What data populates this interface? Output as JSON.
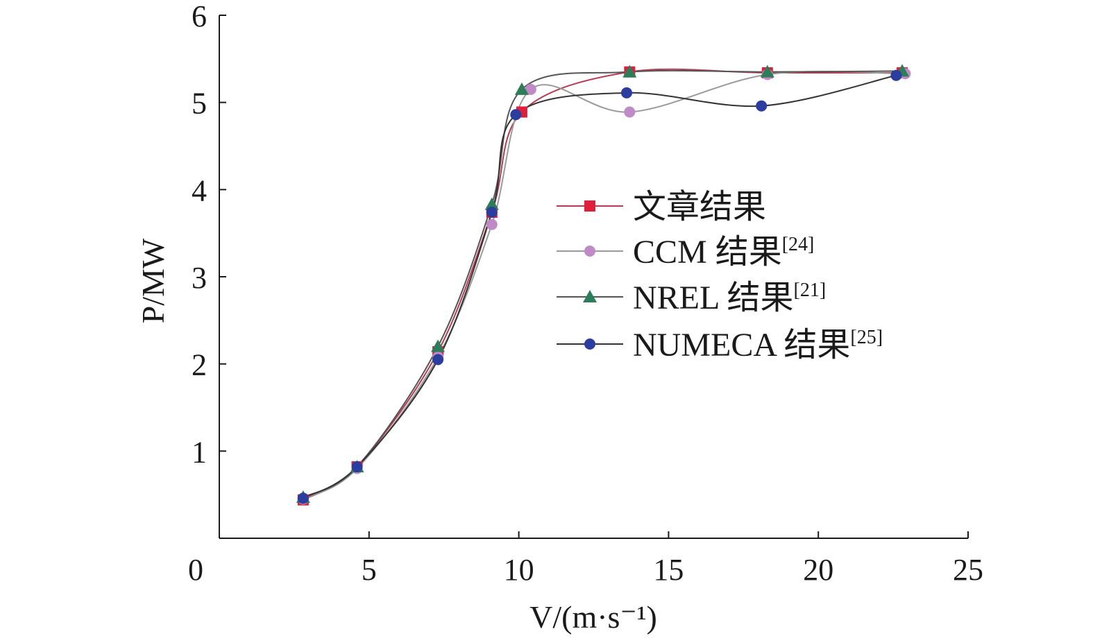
{
  "chart_data": {
    "type": "line",
    "xlabel": "V/(m·s⁻¹)",
    "ylabel": "P/MW",
    "xlim": [
      0,
      25
    ],
    "ylim": [
      0,
      6
    ],
    "x_ticks": [
      "0",
      "5",
      "10",
      "15",
      "20",
      "25"
    ],
    "y_ticks": [
      "1",
      "2",
      "3",
      "4",
      "5",
      "6"
    ],
    "grid": false,
    "legend_position": "center-right",
    "series": [
      {
        "name": "文章结果",
        "ref": "",
        "marker": "square",
        "color": "#e0203a",
        "line_color": "#b83a50",
        "points": [
          [
            2.8,
            0.44
          ],
          [
            4.6,
            0.82
          ],
          [
            7.3,
            2.14
          ],
          [
            9.1,
            3.74
          ],
          [
            10.1,
            4.89
          ],
          [
            13.7,
            5.35
          ],
          [
            18.3,
            5.34
          ],
          [
            22.8,
            5.34
          ]
        ]
      },
      {
        "name": "CCM 结果",
        "ref": "[24]",
        "marker": "circle",
        "color": "#c08ac8",
        "line_color": "#9a9a9a",
        "points": [
          [
            2.8,
            0.45
          ],
          [
            4.6,
            0.8
          ],
          [
            7.3,
            2.08
          ],
          [
            9.1,
            3.6
          ],
          [
            10.4,
            5.15
          ],
          [
            13.7,
            4.89
          ],
          [
            18.3,
            5.32
          ],
          [
            22.9,
            5.33
          ]
        ]
      },
      {
        "name": "NREL 结果",
        "ref": "[21]",
        "marker": "triangle",
        "color": "#2e7d5a",
        "line_color": "#555555",
        "points": [
          [
            2.8,
            0.47
          ],
          [
            4.6,
            0.82
          ],
          [
            7.3,
            2.2
          ],
          [
            9.1,
            3.83
          ],
          [
            10.1,
            5.15
          ],
          [
            13.7,
            5.35
          ],
          [
            18.3,
            5.35
          ],
          [
            22.8,
            5.36
          ]
        ]
      },
      {
        "name": "NUMECA 结果",
        "ref": "[25]",
        "marker": "circle",
        "color": "#2b3d9e",
        "line_color": "#333333",
        "points": [
          [
            2.8,
            0.46
          ],
          [
            4.6,
            0.82
          ],
          [
            7.3,
            2.05
          ],
          [
            9.1,
            3.74
          ],
          [
            9.9,
            4.86
          ],
          [
            13.6,
            5.11
          ],
          [
            18.1,
            4.96
          ],
          [
            22.6,
            5.31
          ]
        ]
      }
    ]
  }
}
